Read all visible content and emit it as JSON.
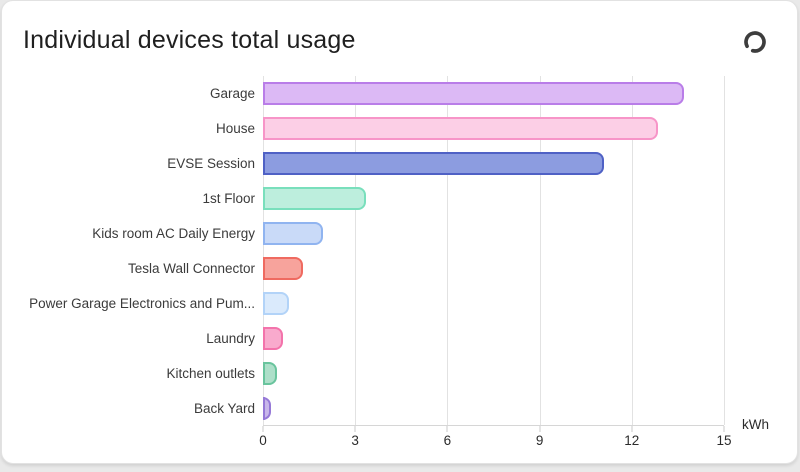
{
  "card": {
    "title": "Individual devices total usage",
    "refresh_icon": "refresh-icon",
    "icon_color": "#3d3d3d"
  },
  "chart_data": {
    "type": "bar",
    "orientation": "horizontal",
    "title": "Individual devices total usage",
    "xlabel": "kWh",
    "xlim": [
      0,
      15
    ],
    "x_ticks": [
      0,
      3,
      6,
      9,
      12,
      15
    ],
    "grid": "vertical",
    "categories": [
      "Garage",
      "House",
      "EVSE Session",
      "1st Floor",
      "Kids room AC Daily Energy",
      "Tesla Wall Connector",
      "Power Garage Electronics and Pum...",
      "Laundry",
      "Kitchen outlets",
      "Back Yard"
    ],
    "values": [
      13.7,
      12.85,
      11.1,
      3.35,
      1.95,
      1.3,
      0.85,
      0.65,
      0.45,
      0.25
    ],
    "colors": [
      {
        "fill": "#dcb9f5",
        "border": "#b97de8"
      },
      {
        "fill": "#fccfe6",
        "border": "#f795c8"
      },
      {
        "fill": "#8c9ce0",
        "border": "#4f61c5"
      },
      {
        "fill": "#bdeedd",
        "border": "#79dfbc"
      },
      {
        "fill": "#c9daf8",
        "border": "#90b4f0"
      },
      {
        "fill": "#f7a39c",
        "border": "#ef6a60"
      },
      {
        "fill": "#daeafc",
        "border": "#b2d3f8"
      },
      {
        "fill": "#f9aacd",
        "border": "#f373ab"
      },
      {
        "fill": "#addfc9",
        "border": "#69c49d"
      },
      {
        "fill": "#c8b7ea",
        "border": "#9679d7"
      }
    ]
  }
}
